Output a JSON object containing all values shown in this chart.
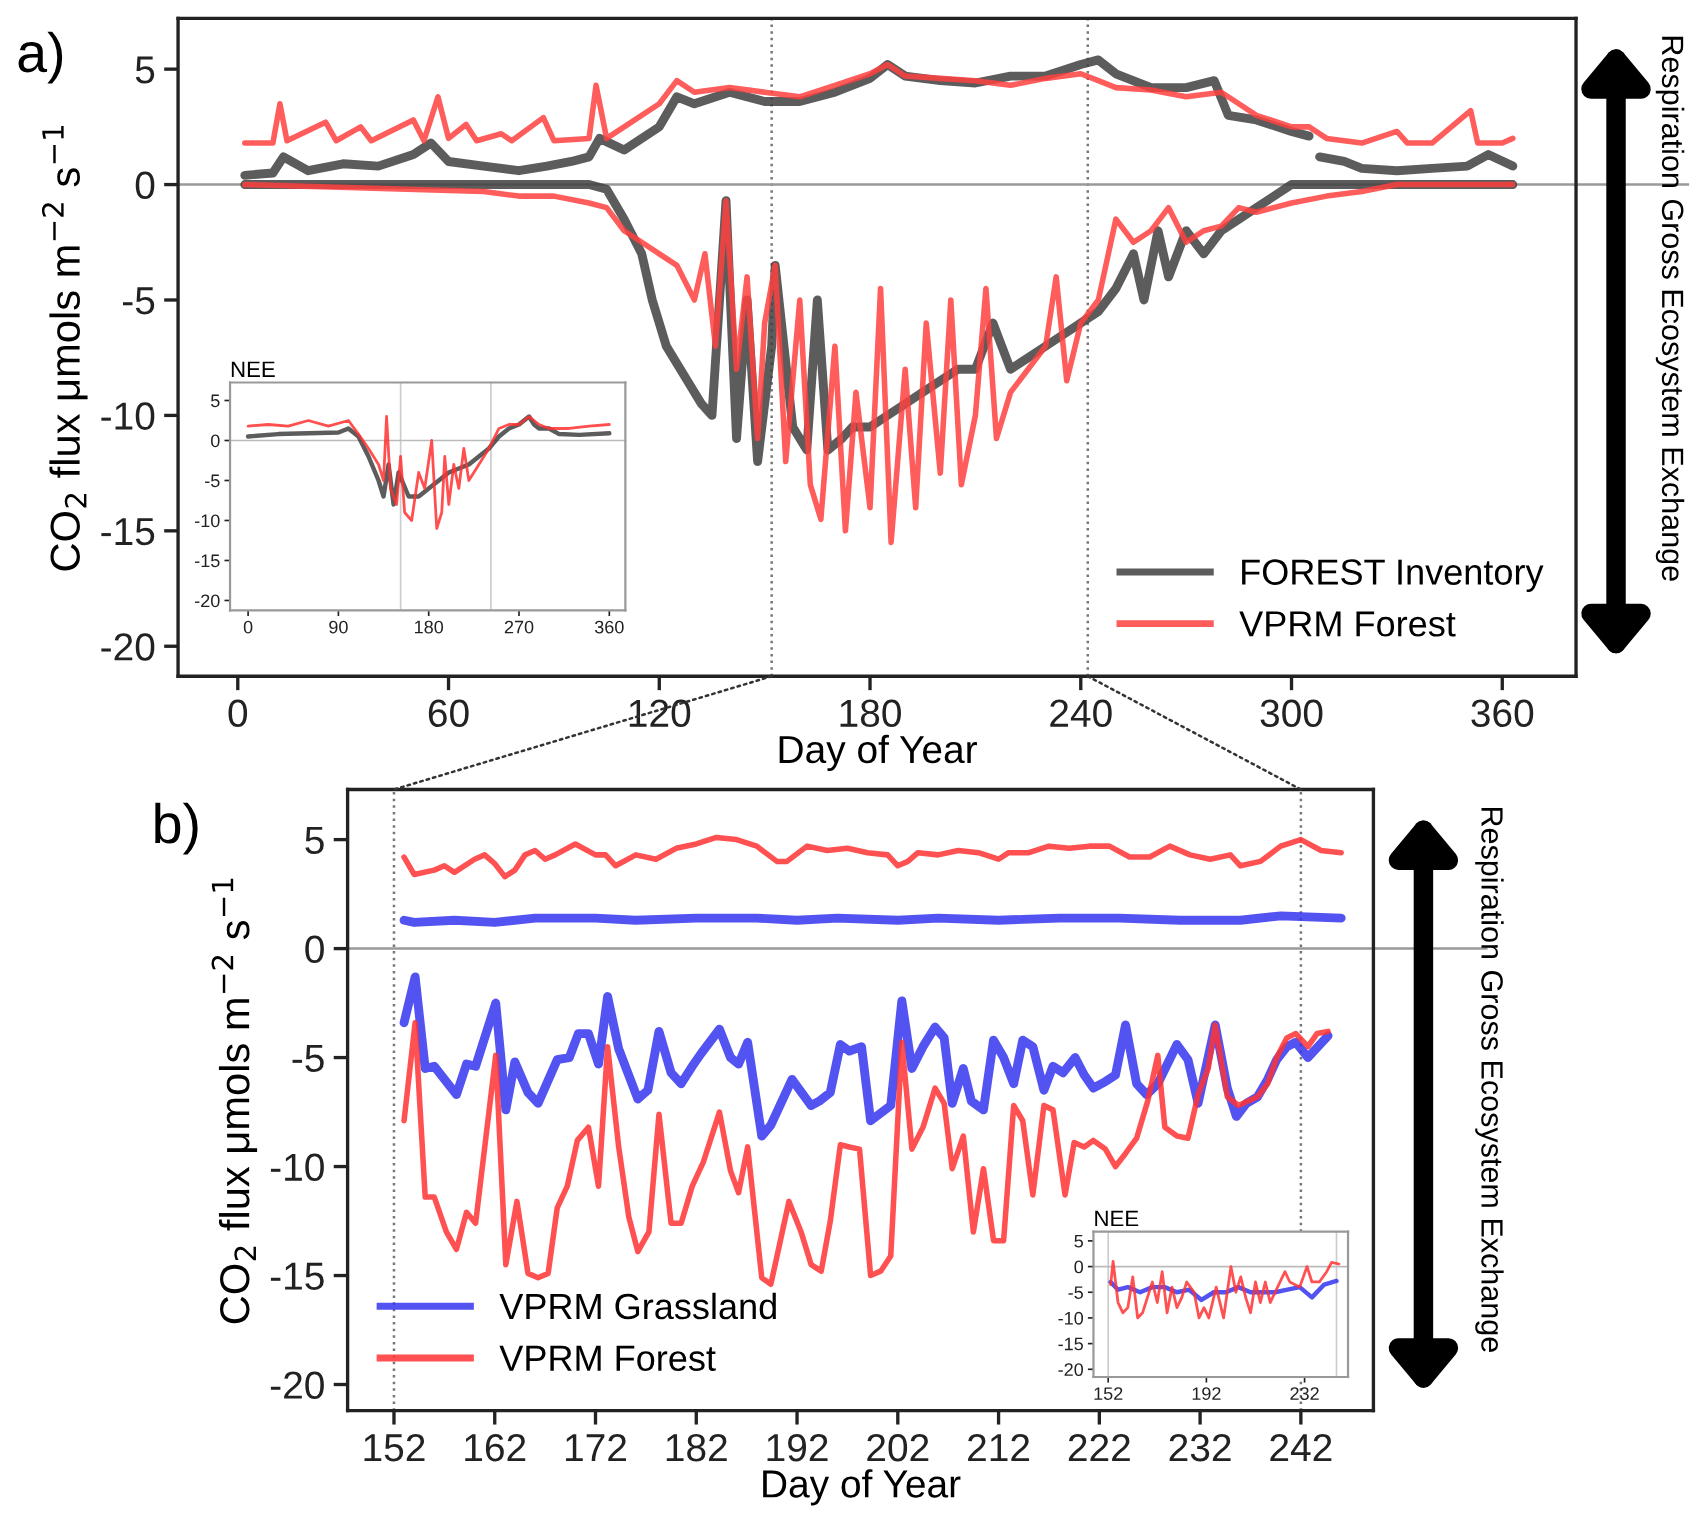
{
  "chart_data": [
    {
      "type": "line",
      "xlabel": "Day of Year",
      "ylabel": "CO$_{2}$ flux μmols m$^{−2}$ s$^{−1}$",
      "xlim": [
        -17,
        381
      ],
      "ylim": [
        -21.3,
        7.2
      ],
      "xticks": [
        0,
        60,
        120,
        180,
        240,
        300,
        360
      ],
      "yticks": [
        -20,
        -15,
        -10,
        -5,
        0,
        5
      ],
      "legend": "bottom right",
      "line_style": "solid",
      "annotations": [
        "a)",
        "Respiration",
        "Gross Ecosystem Exchange"
      ],
      "ref_lines": [
        {
          "axis": "x",
          "value": 152,
          "color": "#777777",
          "line_style": "dotted"
        },
        {
          "axis": "x",
          "value": 242,
          "color": "#777777",
          "line_style": "dotted"
        },
        {
          "axis": "y",
          "value": 0,
          "color": "#999999",
          "line_style": "solid"
        }
      ],
      "series": [
        {
          "name": "FOREST Inventory",
          "color": "#404040",
          "x": [
            2,
            10,
            13,
            20,
            30,
            40,
            50,
            55,
            60,
            70,
            80,
            88,
            95,
            100,
            103,
            110,
            120,
            125,
            130,
            140,
            150,
            160,
            170,
            180,
            185,
            190,
            200,
            210,
            220,
            230,
            240,
            245,
            250,
            260,
            270,
            278,
            282,
            290,
            300,
            305,
            306,
            308,
            315,
            320,
            330,
            340,
            350,
            356,
            363
          ],
          "values": [
            0.4,
            0.5,
            1.2,
            0.6,
            0.9,
            0.8,
            1.3,
            1.8,
            1.0,
            0.8,
            0.6,
            0.8,
            1.0,
            1.2,
            2.0,
            1.5,
            2.5,
            3.8,
            3.5,
            4.0,
            3.6,
            3.6,
            4.0,
            4.6,
            5.2,
            4.7,
            4.5,
            4.4,
            4.7,
            4.7,
            5.2,
            5.4,
            4.8,
            4.2,
            4.2,
            4.5,
            3.0,
            2.8,
            2.3,
            2.1,
            null,
            1.2,
            1.0,
            0.7,
            0.6,
            0.7,
            0.8,
            1.3,
            0.8
          ]
        },
        {
          "color": "#404040",
          "x": [
            2,
            100,
            105,
            110,
            115,
            118,
            122,
            128,
            132,
            135,
            139,
            142,
            145,
            148,
            152,
            153,
            158,
            162,
            165,
            168,
            172,
            175,
            180,
            185,
            190,
            195,
            200,
            205,
            210,
            215,
            220,
            225,
            230,
            235,
            240,
            245,
            250,
            255,
            258,
            262,
            265,
            270,
            275,
            280,
            285,
            290,
            295,
            300,
            363
          ],
          "values": [
            0,
            0,
            -0.2,
            -1.5,
            -3,
            -5,
            -7,
            -8.5,
            -9.5,
            -10,
            -0.7,
            -11,
            -5,
            -12,
            -7,
            -3.5,
            -10.5,
            -11.5,
            -5,
            -11.5,
            -11,
            -10.5,
            -10.5,
            -10,
            -9.5,
            -9,
            -8.5,
            -8,
            -8,
            -6,
            -8,
            -7.5,
            -7,
            -6.5,
            -6,
            -5.5,
            -4.5,
            -3,
            -5,
            -2,
            -4,
            -2,
            -3,
            -2,
            -1.5,
            -1,
            -0.5,
            0,
            0
          ]
        },
        {
          "name": "VPRM Forest",
          "color": "#ff4040",
          "x": [
            2,
            10,
            12,
            14,
            25,
            28,
            35,
            38,
            50,
            53,
            57,
            60,
            65,
            68,
            75,
            78,
            87,
            90,
            100,
            102,
            105,
            110,
            120,
            125,
            130,
            140,
            150,
            160,
            170,
            180,
            185,
            190,
            200,
            210,
            220,
            230,
            240,
            245,
            250,
            260,
            270,
            280,
            285,
            290,
            300,
            305,
            310,
            320,
            330,
            333,
            340,
            351,
            353,
            360,
            363
          ],
          "values": [
            1.8,
            1.8,
            3.5,
            1.9,
            2.7,
            1.9,
            2.5,
            1.9,
            2.8,
            1.9,
            3.8,
            2.0,
            2.6,
            1.9,
            2.2,
            1.9,
            2.9,
            1.9,
            2.0,
            4.3,
            2.0,
            2.5,
            3.5,
            4.5,
            4.0,
            4.2,
            4.0,
            3.8,
            4.3,
            4.8,
            5.2,
            4.7,
            4.6,
            4.5,
            4.3,
            4.6,
            4.8,
            4.5,
            4.2,
            4.1,
            3.8,
            4.0,
            3.5,
            3.0,
            2.5,
            2.5,
            2.0,
            1.8,
            2.3,
            1.8,
            1.8,
            3.2,
            1.8,
            1.8,
            2.0
          ]
        },
        {
          "color": "#ff4040",
          "x": [
            2,
            70,
            80,
            90,
            100,
            105,
            110,
            115,
            120,
            125,
            130,
            133,
            136,
            139,
            142,
            145,
            148,
            150,
            153,
            156,
            160,
            163,
            166,
            170,
            173,
            176,
            180,
            183,
            186,
            190,
            193,
            196,
            200,
            203,
            206,
            210,
            213,
            216,
            220,
            225,
            230,
            233,
            236,
            240,
            245,
            250,
            255,
            260,
            265,
            270,
            275,
            280,
            285,
            290,
            300,
            310,
            320,
            330,
            363
          ],
          "values": [
            0,
            -0.3,
            -0.5,
            -0.5,
            -0.8,
            -1.0,
            -2,
            -2.5,
            -3,
            -3.5,
            -5,
            -3,
            -7,
            -0.7,
            -8,
            -4,
            -11,
            -6,
            -3.5,
            -12,
            -5,
            -13,
            -14.5,
            -7,
            -15,
            -9,
            -14,
            -4.5,
            -15.5,
            -8,
            -14,
            -6,
            -12.5,
            -5,
            -13,
            -10,
            -4.5,
            -11,
            -9,
            -8,
            -7,
            -4,
            -8.5,
            -6,
            -5,
            -1.5,
            -2.5,
            -2,
            -1,
            -2.5,
            -2,
            -1.8,
            -1,
            -1.2,
            -0.8,
            -0.5,
            -0.3,
            0,
            0
          ]
        }
      ]
    },
    {
      "type": "line",
      "title": "NEE",
      "xlim": [
        -18,
        376
      ],
      "ylim": [
        -21.25,
        7.25
      ],
      "xticks": [
        0,
        90,
        180,
        270,
        360
      ],
      "yticks": [
        -20,
        -15,
        -10,
        -5,
        0,
        5
      ],
      "line_style": "solid",
      "ref_lines": [
        {
          "axis": "x",
          "value": 152,
          "color": "#cccccc",
          "line_style": "solid"
        },
        {
          "axis": "x",
          "value": 242,
          "color": "#cccccc",
          "line_style": "solid"
        },
        {
          "axis": "y",
          "value": 0,
          "color": "#bbbbbb",
          "line_style": "solid"
        }
      ],
      "series": [
        {
          "color": "#404040",
          "x": [
            0,
            30,
            60,
            90,
            100,
            110,
            120,
            130,
            135,
            140,
            145,
            150,
            160,
            170,
            180,
            190,
            200,
            210,
            220,
            230,
            240,
            250,
            260,
            270,
            280,
            285,
            290,
            300,
            310,
            330,
            360
          ],
          "values": [
            0.5,
            0.8,
            0.9,
            1.0,
            1.5,
            0.5,
            -2,
            -5,
            -7,
            -3,
            -8,
            -4,
            -7,
            -7,
            -6,
            -5,
            -4,
            -3.5,
            -3,
            -2,
            -1,
            0.5,
            1.5,
            2,
            3,
            2,
            1.5,
            1.5,
            0.8,
            0.7,
            0.9
          ]
        },
        {
          "color": "#ff3030",
          "x": [
            0,
            20,
            40,
            60,
            80,
            100,
            110,
            120,
            130,
            135,
            138,
            142,
            148,
            152,
            156,
            163,
            170,
            176,
            183,
            188,
            193,
            196,
            200,
            205,
            210,
            215,
            220,
            230,
            240,
            250,
            260,
            270,
            280,
            290,
            300,
            320,
            340,
            360
          ],
          "values": [
            1.8,
            2,
            1.8,
            2.5,
            1.8,
            2.5,
            0.8,
            -1,
            -3,
            -5,
            3,
            -6,
            -8,
            -2,
            -9,
            -10,
            -4,
            -6,
            0,
            -11,
            -9,
            -2,
            -8,
            -3,
            -6,
            -1,
            -5,
            -3,
            -1,
            1.5,
            2,
            2,
            3,
            2,
            1.5,
            1.5,
            1.8,
            2
          ]
        }
      ]
    },
    {
      "type": "line",
      "xlabel": "Day of Year",
      "ylabel": "CO$_{2}$ flux μmols m$^{−2}$ s$^{−1}$",
      "xlim": [
        147.4,
        249.2
      ],
      "ylim": [
        -21.2,
        7.3
      ],
      "xticks": [
        152,
        162,
        172,
        182,
        192,
        202,
        212,
        222,
        232,
        242
      ],
      "yticks": [
        -20,
        -15,
        -10,
        -5,
        0,
        5
      ],
      "legend": "bottom left",
      "line_style": "solid",
      "annotations": [
        "b)",
        "Respiration",
        "Gross Ecosystem Exchange"
      ],
      "ref_lines": [
        {
          "axis": "x",
          "value": 152,
          "color": "#777777",
          "line_style": "dotted"
        },
        {
          "axis": "x",
          "value": 242,
          "color": "#777777",
          "line_style": "dotted"
        },
        {
          "axis": "y",
          "value": 0,
          "color": "#999999",
          "line_style": "solid"
        }
      ],
      "series": [
        {
          "name": "VPRM Grassland",
          "color": "#3535f0",
          "x": [
            153,
            154,
            158,
            162,
            166,
            172,
            176,
            182,
            188,
            192,
            196,
            202,
            206,
            212,
            218,
            224,
            230,
            236,
            240,
            246
          ],
          "values": [
            1.3,
            1.2,
            1.3,
            1.2,
            1.4,
            1.4,
            1.3,
            1.4,
            1.4,
            1.3,
            1.4,
            1.3,
            1.4,
            1.3,
            1.4,
            1.4,
            1.3,
            1.3,
            1.5,
            1.4
          ]
        },
        {
          "color": "#3535f0",
          "x": [
            153,
            154.1,
            155.1,
            156,
            158.2,
            159.2,
            160.1,
            162.1,
            163.1,
            164,
            165.3,
            166.3,
            168.2,
            169.4,
            170.3,
            171.3,
            172.3,
            173.2,
            174.3,
            176.2,
            177.2,
            178.3,
            179.5,
            180.5,
            181.6,
            182.5,
            184.3,
            185.4,
            186.2,
            187.1,
            188.5,
            189.4,
            191.5,
            193.4,
            194.2,
            195.3,
            196.3,
            197.2,
            198.4,
            199.3,
            201.3,
            202.4,
            203.4,
            204.5,
            205.7,
            206.6,
            207.4,
            208.5,
            209.3,
            210.5,
            211.5,
            212.5,
            213.5,
            214.4,
            215.4,
            216.5,
            217.4,
            218.4,
            219.6,
            220.5,
            221.4,
            222.6,
            223.6,
            224.6,
            225.7,
            226.7,
            227.8,
            229.7,
            230.8,
            231.8,
            233.5,
            234.7,
            235.6,
            236.6,
            237.7,
            238.7,
            239.6,
            240.6,
            241.5,
            242.7,
            244.7
          ],
          "values": [
            -3.4,
            -1.3,
            -5.5,
            -5.4,
            -6.7,
            -5.3,
            -5.4,
            -2.5,
            -7.4,
            -5.2,
            -6.6,
            -7.1,
            -5.1,
            -5.0,
            -3.9,
            -3.9,
            -5.3,
            -2.2,
            -4.6,
            -6.9,
            -6.5,
            -3.8,
            -5.7,
            -6.2,
            -5.4,
            -4.8,
            -3.7,
            -5.0,
            -5.3,
            -4.3,
            -8.6,
            -8.1,
            -6.0,
            -7.2,
            -7.0,
            -6.6,
            -4.4,
            -4.7,
            -4.5,
            -7.9,
            -7.2,
            -2.4,
            -5.5,
            -4.5,
            -3.6,
            -4.1,
            -7.1,
            -5.5,
            -7.0,
            -7.4,
            -4.2,
            -5.0,
            -6.2,
            -4.2,
            -4.5,
            -6.5,
            -5.4,
            -5.7,
            -5.0,
            -5.8,
            -6.4,
            -6.1,
            -5.8,
            -3.5,
            -6.2,
            -6.7,
            -6.2,
            -4.4,
            -5.1,
            -7.1,
            -3.5,
            -6.4,
            -7.7,
            -7.1,
            -6.8,
            -6.0,
            -5.1,
            -4.5,
            -4.3,
            -5.0,
            -4.0
          ]
        },
        {
          "name": "VPRM Forest",
          "color": "#ff3333",
          "x": [
            153,
            154,
            156,
            157,
            158,
            160,
            161,
            162,
            163,
            164,
            165,
            166,
            167,
            168,
            170,
            172,
            173,
            174,
            176,
            178,
            180,
            182,
            184,
            186,
            188,
            190,
            191,
            193,
            195,
            197,
            199,
            201,
            202,
            203,
            204,
            206,
            208,
            210,
            212,
            213,
            215,
            217,
            219,
            221,
            223,
            225,
            227,
            229,
            231,
            233,
            235,
            236,
            238,
            240,
            242,
            244,
            246
          ],
          "values": [
            4.2,
            3.4,
            3.6,
            3.8,
            3.5,
            4.1,
            4.3,
            3.9,
            3.3,
            3.6,
            4.3,
            4.5,
            4.1,
            4.3,
            4.8,
            4.3,
            4.3,
            3.8,
            4.3,
            4.1,
            4.6,
            4.8,
            5.1,
            5.0,
            4.7,
            4.0,
            4.0,
            4.7,
            4.5,
            4.6,
            4.4,
            4.3,
            3.8,
            4.0,
            4.4,
            4.3,
            4.5,
            4.4,
            4.1,
            4.4,
            4.4,
            4.7,
            4.6,
            4.7,
            4.7,
            4.2,
            4.2,
            4.7,
            4.3,
            4.1,
            4.3,
            3.8,
            4.0,
            4.7,
            5.0,
            4.5,
            4.4
          ]
        },
        {
          "color": "#ff3333",
          "x": [
            153,
            154.1,
            155.1,
            156,
            157.2,
            158.2,
            159.2,
            160.1,
            162.1,
            163.1,
            164.2,
            165.3,
            166.3,
            167.3,
            168.2,
            169.2,
            170.2,
            171.3,
            172.3,
            173.2,
            174.3,
            175.3,
            176.2,
            177.3,
            178.3,
            179.5,
            180.5,
            181.6,
            182.7,
            184.3,
            185.4,
            186.2,
            187.1,
            188.5,
            189.4,
            191.2,
            192.4,
            193.4,
            194.4,
            195.3,
            196.3,
            197.2,
            198.2,
            199.3,
            200.3,
            201.3,
            202.4,
            203.4,
            204.5,
            205.7,
            206.6,
            207.4,
            208.5,
            209.5,
            210.5,
            211.5,
            212.5,
            213.5,
            214.4,
            215.4,
            216.5,
            217.4,
            218.6,
            219.5,
            220.5,
            221.4,
            222.6,
            223.6,
            224.6,
            225.7,
            226.8,
            227.8,
            228.5,
            229.7,
            230.8,
            231.8,
            232.8,
            233.5,
            234.7,
            235.8,
            237.7,
            238.7,
            239.6,
            240.6,
            241.5,
            242.7,
            243.6,
            244.7
          ],
          "values": [
            -7.9,
            -3.4,
            -11.4,
            -11.4,
            -13.0,
            -13.8,
            -12.1,
            -12.6,
            -4.9,
            -14.5,
            -11.6,
            -14.9,
            -15.1,
            -14.9,
            -11.9,
            -10.9,
            -8.8,
            -8.2,
            -10.9,
            -4.5,
            -9.1,
            -12.3,
            -13.9,
            -13.0,
            -7.6,
            -12.6,
            -12.6,
            -10.9,
            -9.8,
            -7.5,
            -10.2,
            -11.2,
            -9.1,
            -15.1,
            -15.4,
            -11.6,
            -13.0,
            -14.5,
            -14.8,
            -12.5,
            -9.0,
            -9.1,
            -9.2,
            -15.0,
            -14.8,
            -14.1,
            -4.3,
            -9.2,
            -8.2,
            -6.4,
            -7.1,
            -10.1,
            -8.6,
            -13.0,
            -10.1,
            -13.4,
            -13.4,
            -7.2,
            -7.9,
            -11.3,
            -7.2,
            -7.4,
            -11.3,
            -8.9,
            -9.1,
            -8.8,
            -9.2,
            -10.0,
            -9.4,
            -8.7,
            -7.0,
            -4.9,
            -8.2,
            -8.6,
            -8.7,
            -6.7,
            -5.5,
            -3.5,
            -6.8,
            -7.2,
            -6.8,
            -6.2,
            -5.0,
            -4.1,
            -3.9,
            -4.5,
            -3.9,
            -3.8
          ]
        }
      ]
    },
    {
      "type": "line",
      "title": "NEE",
      "xlim": [
        146,
        249.7
      ],
      "ylim": [
        -21.5,
        6.8
      ],
      "xticks": [
        152,
        192,
        232
      ],
      "yticks": [
        -20,
        -15,
        -10,
        -5,
        0,
        5
      ],
      "line_style": "solid",
      "ref_lines": [
        {
          "axis": "x",
          "value": 152,
          "color": "#cccccc",
          "line_style": "solid"
        },
        {
          "axis": "x",
          "value": 245,
          "color": "#cccccc",
          "line_style": "solid"
        },
        {
          "axis": "y",
          "value": 0,
          "color": "#bbbbbb",
          "line_style": "solid"
        }
      ],
      "series": [
        {
          "color": "#3535f0",
          "x": [
            153,
            156,
            160,
            165,
            170,
            175,
            180,
            185,
            190,
            195,
            200,
            205,
            210,
            215,
            220,
            225,
            230,
            235,
            240,
            245
          ],
          "values": [
            -3,
            -4.5,
            -4,
            -5,
            -4,
            -4,
            -5,
            -4.5,
            -6.5,
            -5,
            -5,
            -4,
            -5,
            -5,
            -5,
            -4.5,
            -4,
            -6,
            -3.5,
            -2.8
          ]
        },
        {
          "color": "#ff3333",
          "x": [
            153,
            154,
            156,
            158,
            160,
            162,
            164,
            166,
            168,
            170,
            172,
            174,
            176,
            178,
            180,
            182,
            184,
            187,
            189,
            191,
            193,
            196,
            199,
            202,
            204,
            206,
            208,
            210,
            212,
            214,
            216,
            218,
            220,
            224,
            226,
            230,
            233,
            235,
            238,
            241,
            243,
            246
          ],
          "values": [
            -3.5,
            1,
            -7,
            -9,
            -8,
            -2,
            -10,
            -9,
            -6,
            -3,
            -7,
            -1,
            -9,
            -4,
            -8,
            -6,
            -3,
            -5,
            -10,
            -8,
            -10,
            -4,
            -10,
            0,
            -5,
            -2,
            -6,
            -9,
            -3,
            -7,
            -3,
            -7,
            -5,
            -1,
            -3,
            -4,
            0,
            -3,
            -3,
            -1,
            0.8,
            0.5
          ]
        }
      ]
    }
  ]
}
